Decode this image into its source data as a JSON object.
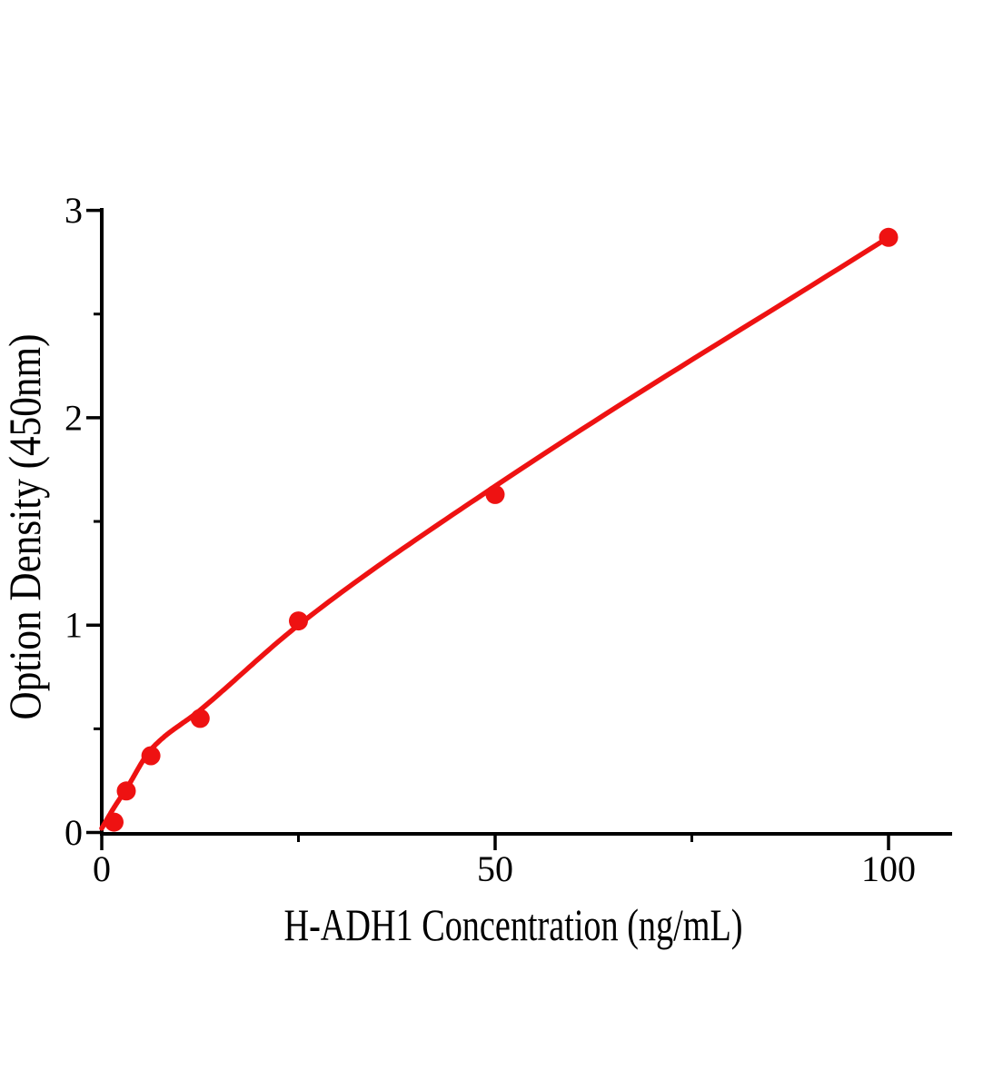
{
  "colors": {
    "background": "#ffffff",
    "axis": "#000000",
    "series": "#ee1212"
  },
  "chart_data": {
    "type": "scatter",
    "title": "",
    "xlabel": "H-ADH1 Concentration (ng/mL)",
    "ylabel": "Option Density (450nm)",
    "xlim": [
      0,
      108
    ],
    "ylim": [
      0,
      3
    ],
    "grid": false,
    "legend": "none",
    "x_major_ticks": [
      {
        "value": 0,
        "label": "0"
      },
      {
        "value": 50,
        "label": "50"
      },
      {
        "value": 100,
        "label": "100"
      }
    ],
    "x_minor_ticks": [
      25,
      75
    ],
    "y_major_ticks": [
      {
        "value": 0,
        "label": "0"
      },
      {
        "value": 1,
        "label": "1"
      },
      {
        "value": 2,
        "label": "2"
      },
      {
        "value": 3,
        "label": "3"
      }
    ],
    "y_minor_ticks": [
      0.5,
      1.5,
      2.5
    ],
    "series": [
      {
        "style": "scatter-with-smooth-fit-line",
        "color": "#ee1212",
        "points": [
          [
            1.56,
            0.05
          ],
          [
            3.12,
            0.2
          ],
          [
            6.25,
            0.37
          ],
          [
            12.5,
            0.55
          ],
          [
            25,
            1.02
          ],
          [
            50,
            1.63
          ],
          [
            100,
            2.87
          ]
        ],
        "fit_curve": [
          [
            0,
            0.02
          ],
          [
            1.56,
            0.12
          ],
          [
            3.12,
            0.21
          ],
          [
            6.25,
            0.4
          ],
          [
            12.5,
            0.59
          ],
          [
            25,
            1.0
          ],
          [
            50,
            1.67
          ],
          [
            100,
            2.87
          ]
        ]
      }
    ]
  }
}
